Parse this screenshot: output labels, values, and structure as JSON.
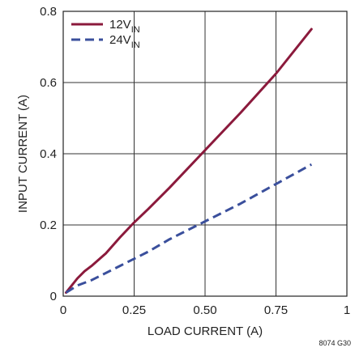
{
  "chart_data": {
    "type": "line",
    "xlabel": "LOAD CURRENT (A)",
    "ylabel": "INPUT CURRENT (A)",
    "xlim": [
      0,
      1
    ],
    "ylim": [
      0,
      0.8
    ],
    "x_ticks": [
      "0",
      "0.25",
      "0.50",
      "0.75",
      "1"
    ],
    "y_ticks": [
      "0",
      "0.2",
      "0.4",
      "0.6",
      "0.8"
    ],
    "grid": true,
    "legend_position": "top-left",
    "series": [
      {
        "name": "12V",
        "name_subscript": "IN",
        "color": "#8b1a3c",
        "dash": "solid",
        "x": [
          0.01,
          0.05,
          0.075,
          0.1,
          0.15,
          0.2,
          0.25,
          0.3,
          0.375,
          0.5,
          0.625,
          0.75,
          0.875
        ],
        "y": [
          0.01,
          0.05,
          0.07,
          0.085,
          0.12,
          0.165,
          0.207,
          0.245,
          0.305,
          0.41,
          0.515,
          0.625,
          0.75
        ]
      },
      {
        "name": "24V",
        "name_subscript": "IN",
        "color": "#3a4f9c",
        "dash": "dashed",
        "x": [
          0.01,
          0.05,
          0.1,
          0.2,
          0.25,
          0.3,
          0.375,
          0.5,
          0.625,
          0.75,
          0.875
        ],
        "y": [
          0.01,
          0.03,
          0.045,
          0.085,
          0.105,
          0.125,
          0.16,
          0.21,
          0.26,
          0.315,
          0.37
        ]
      }
    ]
  },
  "figure_id": "8074 G30"
}
